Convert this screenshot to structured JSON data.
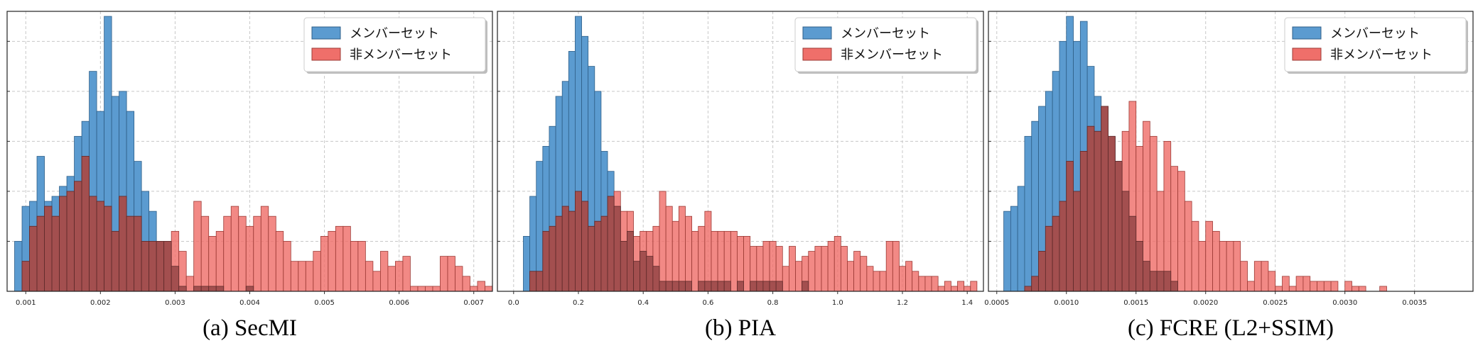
{
  "colors": {
    "member_fill": "#5b9bd0",
    "member_stroke": "#2f5f88",
    "nonmember_fill": "#ef6f6a",
    "nonmember_stroke": "#9c3b36",
    "overlap_fill": "#a34f4f",
    "grid": "#c8c8c8",
    "frame": "#222222"
  },
  "legend": {
    "member_label": "メンバーセット",
    "nonmember_label": "非メンバーセット",
    "placement": "top-right"
  },
  "chart_data": [
    {
      "type": "bar",
      "caption": "(a) SecMI",
      "xlim": [
        0.00075,
        0.00725
      ],
      "ylim": [
        0,
        56
      ],
      "xticks": [
        "0.001",
        "0.002",
        "0.003",
        "0.004",
        "0.005",
        "0.006",
        "0.007"
      ],
      "xtick_values": [
        0.001,
        0.002,
        0.003,
        0.004,
        0.005,
        0.006,
        0.007
      ],
      "yticks": [
        10,
        20,
        30,
        40,
        50
      ],
      "grid": true,
      "series": [
        {
          "name": "メンバーセット",
          "x_start": 0.00085,
          "bin_width": 0.0001,
          "values": [
            10,
            17,
            18,
            27,
            18,
            19,
            21,
            23,
            31,
            34,
            44,
            36,
            55,
            39,
            40,
            36,
            26,
            20,
            16,
            10,
            10,
            5,
            1,
            0,
            1,
            1,
            1,
            1,
            0,
            0,
            0,
            1,
            0,
            0,
            0,
            0,
            0,
            0,
            0,
            0,
            0,
            0,
            0,
            0,
            0,
            0,
            0,
            0,
            0,
            0,
            0,
            0,
            0,
            0,
            0,
            0,
            0,
            0,
            0,
            0,
            0,
            0,
            0,
            0
          ]
        },
        {
          "name": "非メンバーセット",
          "x_start": 0.00085,
          "bin_width": 0.0001,
          "values": [
            0,
            6,
            13,
            15,
            17,
            15,
            19,
            20,
            22,
            27,
            19,
            18,
            17,
            12,
            19,
            15,
            15,
            10,
            10,
            10,
            10,
            12,
            8,
            3,
            18,
            15,
            11,
            12,
            15,
            17,
            15,
            13,
            15,
            17,
            15,
            12,
            10,
            6,
            6,
            6,
            8,
            11,
            12,
            13,
            13,
            10,
            10,
            6,
            4,
            8,
            5,
            6,
            7,
            1,
            1,
            1,
            1,
            7,
            7,
            5,
            3,
            1,
            2,
            1
          ]
        }
      ]
    },
    {
      "type": "bar",
      "caption": "(b) PIA",
      "xlim": [
        -0.05,
        1.45
      ],
      "ylim": [
        0,
        56
      ],
      "xticks": [
        "0.0",
        "0.2",
        "0.4",
        "0.6",
        "0.8",
        "1.0",
        "1.2",
        "1.4"
      ],
      "xtick_values": [
        0.0,
        0.2,
        0.4,
        0.6,
        0.8,
        1.0,
        1.2,
        1.4
      ],
      "yticks": [
        10,
        20,
        30,
        40,
        50
      ],
      "grid": true,
      "series": [
        {
          "name": "メンバーセット",
          "x_start": 0.03,
          "bin_width": 0.02,
          "values": [
            11,
            19,
            26,
            29,
            33,
            39,
            42,
            48,
            55,
            51,
            45,
            40,
            28,
            24,
            17,
            10,
            12,
            6,
            8,
            7,
            5,
            2,
            2,
            2,
            2,
            2,
            0,
            2,
            2,
            2,
            2,
            2,
            0,
            2,
            0,
            2,
            2,
            2,
            2,
            2,
            0,
            0,
            0,
            2,
            0,
            0,
            0,
            0,
            0,
            0,
            0,
            0,
            0,
            0,
            0,
            0,
            0,
            0,
            0,
            0,
            0,
            0,
            0,
            0,
            0,
            0,
            0,
            0,
            0,
            0
          ]
        },
        {
          "name": "非メンバーセット",
          "x_start": 0.03,
          "bin_width": 0.02,
          "values": [
            0,
            4,
            4,
            12,
            13,
            15,
            17,
            16,
            20,
            18,
            13,
            14,
            15,
            19,
            20,
            16,
            16,
            11,
            12,
            12,
            13,
            20,
            17,
            14,
            17,
            15,
            12,
            13,
            16,
            12,
            12,
            12,
            12,
            11,
            11,
            9,
            9,
            10,
            10,
            9,
            5,
            9,
            6,
            7,
            8,
            9,
            9,
            10,
            11,
            9,
            6,
            8,
            7,
            5,
            4,
            4,
            10,
            10,
            5,
            6,
            4,
            3,
            3,
            3,
            1,
            2,
            1,
            2,
            1,
            2
          ]
        }
      ]
    },
    {
      "type": "bar",
      "caption": "(c) FCRE (L2+SSIM)",
      "xlim": [
        0.00044,
        0.00392
      ],
      "ylim": [
        0,
        56
      ],
      "xticks": [
        "0.0005",
        "0.0010",
        "0.0015",
        "0.0020",
        "0.0025",
        "0.0030",
        "0.0035"
      ],
      "xtick_values": [
        0.0005,
        0.001,
        0.0015,
        0.002,
        0.0025,
        0.003,
        0.0035
      ],
      "yticks": [
        10,
        20,
        30,
        40,
        50
      ],
      "grid": true,
      "series": [
        {
          "name": "メンバーセット",
          "x_start": 0.00055,
          "bin_width": 5e-05,
          "values": [
            16,
            17,
            21,
            31,
            34,
            37,
            40,
            44,
            50,
            55,
            50,
            54,
            45,
            39,
            37,
            31,
            26,
            20,
            15,
            10,
            6,
            4,
            4,
            4,
            2,
            0,
            0,
            0,
            0,
            0,
            0,
            0,
            0,
            0,
            0,
            0,
            0,
            0,
            0,
            0,
            0,
            0,
            0,
            0,
            0,
            0,
            0,
            0,
            0,
            0,
            0,
            0,
            0,
            0,
            0,
            0,
            0,
            0,
            0,
            0,
            0,
            0,
            0,
            0,
            0,
            0,
            0,
            0
          ]
        },
        {
          "name": "非メンバーセット",
          "x_start": 0.00055,
          "bin_width": 5e-05,
          "values": [
            0,
            0,
            0,
            1,
            3,
            8,
            13,
            15,
            18,
            26,
            20,
            28,
            33,
            32,
            37,
            31,
            26,
            32,
            38,
            29,
            34,
            31,
            20,
            30,
            25,
            24,
            18,
            14,
            10,
            14,
            12,
            10,
            10,
            10,
            6,
            2,
            6,
            6,
            4,
            1,
            3,
            1,
            3,
            3,
            2,
            2,
            2,
            2,
            0,
            2,
            1,
            1,
            0,
            0,
            1,
            0,
            0,
            0,
            0,
            0,
            0,
            0,
            0,
            0,
            0,
            0,
            0,
            0
          ]
        }
      ]
    }
  ]
}
